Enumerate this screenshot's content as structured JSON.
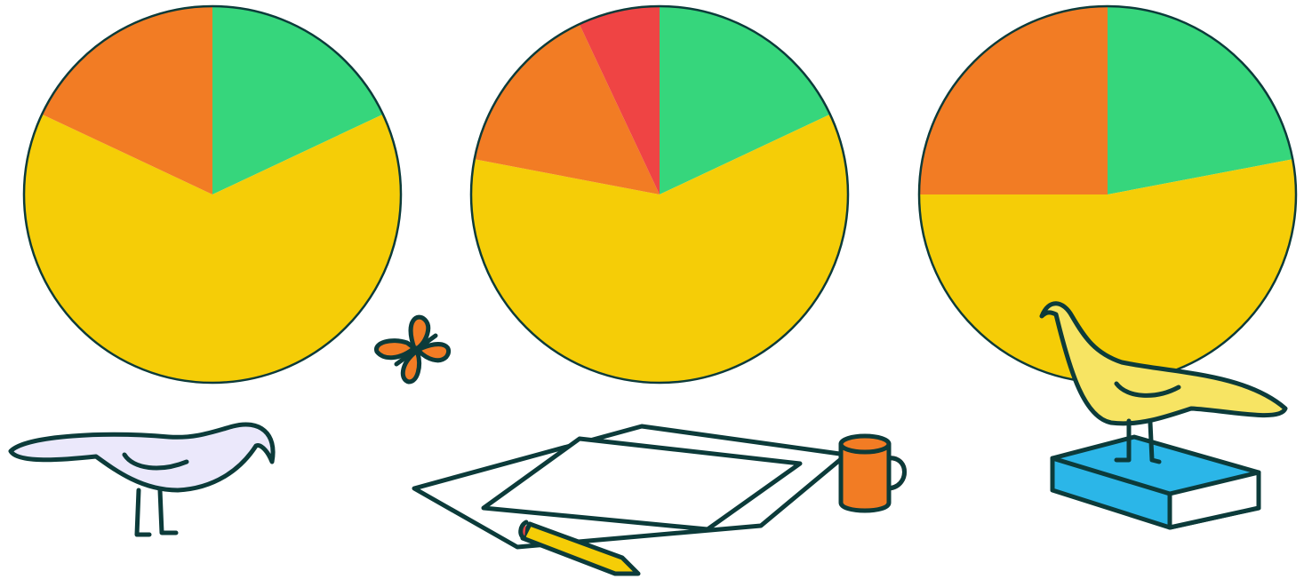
{
  "chart_data": [
    {
      "type": "pie",
      "values": [
        18,
        64,
        18
      ],
      "colors": [
        "#36d67c",
        "#f5cd07",
        "#f27c24"
      ]
    },
    {
      "type": "pie",
      "values": [
        18,
        60,
        15,
        7
      ],
      "colors": [
        "#36d67c",
        "#f5cd07",
        "#f27c24",
        "#ef4444"
      ]
    },
    {
      "type": "pie",
      "values": [
        22,
        53,
        25
      ],
      "colors": [
        "#36d67c",
        "#f5cd07",
        "#f27c24"
      ]
    }
  ]
}
